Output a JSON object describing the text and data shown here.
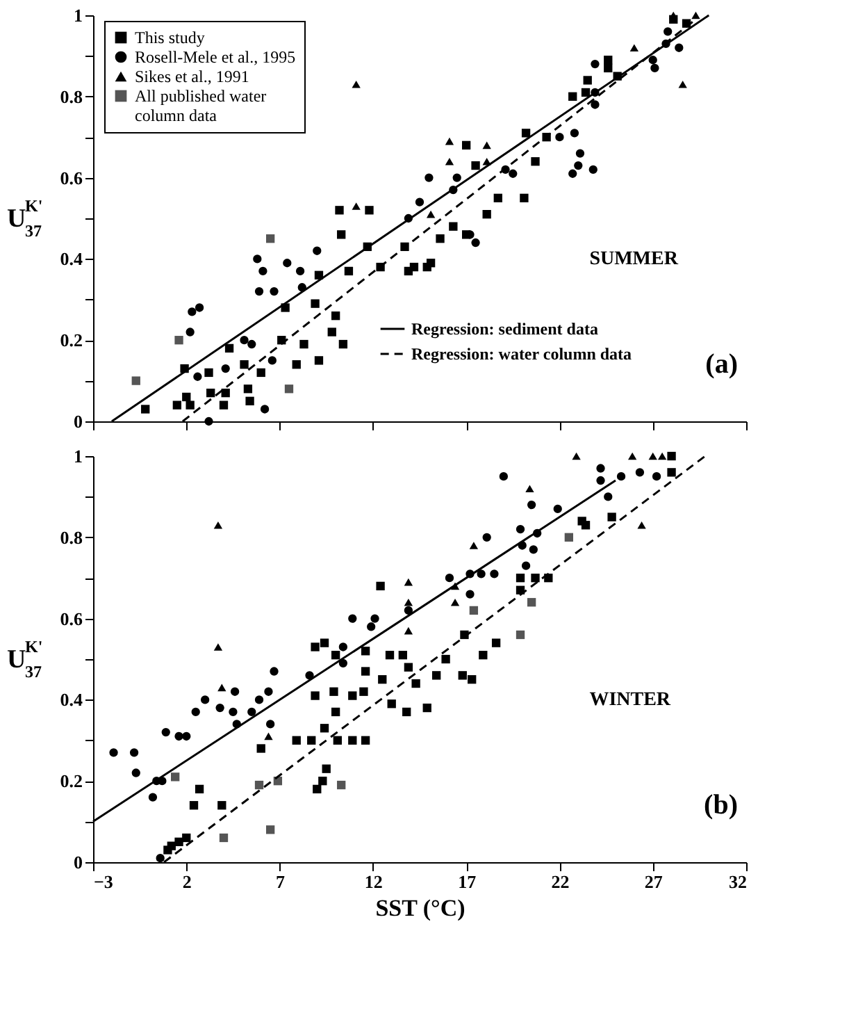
{
  "chart_data": [
    {
      "type": "scatter",
      "ylabel": "U$^{K'}$$_{37}$",
      "annotations": [
        "SUMMER",
        "(a)"
      ],
      "xlim": [
        -3,
        32
      ],
      "xticks": [
        -3,
        2,
        7,
        12,
        17,
        22,
        27,
        32
      ],
      "ylim": [
        0,
        1
      ],
      "yticks": [
        0,
        {
          "value": 0.1,
          "label": null
        },
        0.2,
        {
          "value": 0.3,
          "label": null
        },
        0.4,
        {
          "value": 0.5,
          "label": null
        },
        0.6,
        {
          "value": 0.7,
          "label": null
        },
        0.8,
        {
          "value": 0.9,
          "label": null
        },
        1
      ],
      "tick_labels": "y",
      "legend": "top left",
      "grid": false,
      "series": [
        {
          "name": "This study",
          "marker": "square",
          "color": "#000000",
          "x": [
            10.2,
            11.8,
            10.3,
            9.1,
            11.7,
            12.4,
            10.7,
            7.3,
            8.9,
            10.0,
            9.8,
            10.4,
            8.3,
            7.1,
            4.3,
            5.1,
            6.0,
            7.9,
            9.1,
            3.2,
            1.9,
            5.3,
            4.1,
            2.0,
            3.3,
            14.2,
            13.7,
            17.0,
            17.5,
            18.7,
            18.1,
            20.1,
            20.7,
            20.2,
            21.3,
            22.7,
            23.5,
            23.4,
            24.6,
            24.6,
            25.1,
            15.6,
            16.3,
            17.0,
            15.1,
            13.9,
            14.9,
            28.1,
            28.8,
            -0.2,
            1.5,
            2.2,
            4.0,
            5.4
          ],
          "values": [
            0.52,
            0.52,
            0.46,
            0.36,
            0.43,
            0.38,
            0.37,
            0.28,
            0.29,
            0.26,
            0.22,
            0.19,
            0.19,
            0.2,
            0.18,
            0.14,
            0.12,
            0.14,
            0.15,
            0.12,
            0.13,
            0.08,
            0.07,
            0.06,
            0.07,
            0.38,
            0.43,
            0.68,
            0.63,
            0.55,
            0.51,
            0.55,
            0.64,
            0.71,
            0.7,
            0.8,
            0.84,
            0.81,
            0.89,
            0.87,
            0.85,
            0.45,
            0.48,
            0.46,
            0.39,
            0.37,
            0.38,
            0.99,
            0.98,
            0.03,
            0.04,
            0.04,
            0.04,
            0.05
          ]
        },
        {
          "name": "Rosell-Mele et al., 1995",
          "marker": "circle",
          "color": "#000000",
          "x": [
            5.8,
            6.1,
            7.4,
            8.1,
            5.9,
            6.7,
            8.2,
            9.0,
            2.3,
            2.7,
            2.2,
            5.1,
            5.5,
            6.6,
            4.1,
            2.6,
            3.2,
            6.2,
            15.0,
            16.5,
            16.3,
            19.1,
            19.5,
            22.0,
            22.8,
            23.9,
            23.9,
            23.9,
            23.8,
            22.7,
            23.1,
            23.0,
            27.1,
            27.0,
            27.7,
            28.4,
            27.8,
            17.2,
            17.5,
            13.9,
            14.5
          ],
          "values": [
            0.4,
            0.37,
            0.39,
            0.37,
            0.32,
            0.32,
            0.33,
            0.42,
            0.27,
            0.28,
            0.22,
            0.2,
            0.19,
            0.15,
            0.13,
            0.11,
            0.0,
            0.03,
            0.6,
            0.6,
            0.57,
            0.62,
            0.61,
            0.7,
            0.71,
            0.78,
            0.88,
            0.81,
            0.62,
            0.61,
            0.66,
            0.63,
            0.87,
            0.89,
            0.93,
            0.92,
            0.96,
            0.46,
            0.44,
            0.5,
            0.54
          ]
        },
        {
          "name": "Sikes et al., 1991",
          "marker": "triangle",
          "color": "#000000",
          "x": [
            11.1,
            11.1,
            26.0,
            28.6,
            16.1,
            16.1,
            18.1,
            18.1,
            15.1,
            29.3,
            28.1
          ],
          "values": [
            0.83,
            0.53,
            0.92,
            0.83,
            0.69,
            0.64,
            0.68,
            0.64,
            0.51,
            1.0,
            1.0
          ]
        },
        {
          "name": "All published water column data",
          "marker": "square",
          "color": "#555555",
          "x": [
            6.5,
            1.6,
            -0.7,
            7.5
          ],
          "values": [
            0.45,
            0.2,
            0.1,
            0.08
          ]
        },
        {
          "name": "Regression: sediment data",
          "type": "line",
          "color": "#000000",
          "line_style": "solid",
          "x": [
            -2.0,
            30.0
          ],
          "values": [
            0,
            1.0
          ]
        },
        {
          "name": "Regression: water column data",
          "type": "line",
          "color": "#000000",
          "line_style": "dashed",
          "x": [
            1.8,
            29.3
          ],
          "values": [
            0,
            0.99
          ]
        }
      ]
    },
    {
      "type": "scatter",
      "xlabel": "SST (°C)",
      "ylabel": "U$^{K'}$$_{37}$",
      "annotations": [
        "WINTER",
        "(b)"
      ],
      "xlim": [
        -3,
        32
      ],
      "xticks": [
        -3,
        2,
        7,
        12,
        17,
        22,
        27,
        32
      ],
      "ylim": [
        0,
        1
      ],
      "yticks": [
        0,
        {
          "value": 0.1,
          "label": null
        },
        0.2,
        {
          "value": 0.3,
          "label": null
        },
        0.4,
        {
          "value": 0.5,
          "label": null
        },
        0.6,
        {
          "value": 0.7,
          "label": null
        },
        0.8,
        {
          "value": 0.9,
          "label": null
        },
        1
      ],
      "grid": false,
      "series": [
        {
          "marker": "square",
          "color": "#000000",
          "x": [
            12.4,
            8.9,
            9.4,
            10.0,
            11.6,
            12.9,
            8.9,
            9.9,
            10.0,
            10.9,
            11.5,
            11.6,
            12.5,
            13.0,
            9.4,
            10.1,
            10.9,
            11.6,
            6.0,
            7.9,
            8.7,
            9.5,
            9.3,
            9.0,
            2.7,
            3.9,
            2.4,
            13.8,
            1.2,
            1.6,
            2.0,
            1.0,
            23.2,
            23.4,
            24.8,
            28.0,
            28.0,
            19.9,
            20.7,
            21.4,
            19.9,
            16.9,
            18.6,
            17.9,
            15.9,
            15.4,
            16.8,
            17.3,
            14.3,
            14.9,
            13.6,
            13.9
          ],
          "values": [
            0.68,
            0.53,
            0.54,
            0.51,
            0.52,
            0.51,
            0.41,
            0.42,
            0.37,
            0.41,
            0.42,
            0.47,
            0.45,
            0.39,
            0.33,
            0.3,
            0.3,
            0.3,
            0.28,
            0.3,
            0.3,
            0.23,
            0.2,
            0.18,
            0.18,
            0.14,
            0.14,
            0.37,
            0.04,
            0.05,
            0.06,
            0.03,
            0.84,
            0.83,
            0.85,
            1.0,
            0.96,
            0.7,
            0.7,
            0.7,
            0.67,
            0.56,
            0.54,
            0.51,
            0.5,
            0.46,
            0.46,
            0.45,
            0.44,
            0.38,
            0.51,
            0.48
          ]
        },
        {
          "marker": "circle",
          "color": "#000000",
          "x": [
            -1.9,
            -0.8,
            -0.7,
            0.9,
            1.6,
            2.0,
            2.5,
            3.0,
            3.8,
            4.6,
            4.5,
            4.7,
            5.5,
            5.9,
            6.4,
            6.7,
            6.5,
            8.6,
            10.4,
            10.4,
            10.9,
            11.9,
            12.1,
            0.4,
            0.7,
            0.2,
            0.6,
            19.0,
            20.5,
            21.9,
            18.1,
            19.9,
            20.0,
            20.6,
            20.8,
            16.1,
            17.2,
            17.8,
            18.5,
            17.2,
            20.2,
            24.2,
            24.2,
            24.6,
            25.3,
            26.3,
            27.2,
            13.9
          ],
          "values": [
            0.27,
            0.27,
            0.22,
            0.32,
            0.31,
            0.31,
            0.37,
            0.4,
            0.38,
            0.42,
            0.37,
            0.34,
            0.37,
            0.4,
            0.42,
            0.47,
            0.34,
            0.46,
            0.49,
            0.53,
            0.6,
            0.58,
            0.6,
            0.2,
            0.2,
            0.16,
            0.01,
            0.95,
            0.88,
            0.87,
            0.8,
            0.82,
            0.78,
            0.77,
            0.81,
            0.7,
            0.71,
            0.71,
            0.71,
            0.66,
            0.73,
            0.97,
            0.94,
            0.9,
            0.95,
            0.96,
            0.95,
            0.62
          ]
        },
        {
          "marker": "triangle",
          "color": "#000000",
          "x": [
            3.7,
            3.7,
            3.9,
            6.4,
            13.9,
            13.9,
            13.9,
            22.9,
            20.4,
            17.4,
            16.4,
            16.4,
            26.4,
            25.9,
            27.0,
            27.5
          ],
          "values": [
            0.83,
            0.53,
            0.43,
            0.31,
            0.69,
            0.64,
            0.57,
            1.0,
            0.92,
            0.78,
            0.68,
            0.64,
            0.83,
            1.0,
            1.0,
            1.0
          ]
        },
        {
          "marker": "square",
          "color": "#555555",
          "x": [
            1.4,
            5.9,
            6.9,
            10.3,
            22.5,
            17.4,
            20.5,
            19.9,
            4.0,
            6.5
          ],
          "values": [
            0.21,
            0.19,
            0.2,
            0.19,
            0.8,
            0.62,
            0.64,
            0.56,
            0.06,
            0.08
          ]
        },
        {
          "type": "line",
          "color": "#000000",
          "line_style": "solid",
          "x": [
            -3,
            25
          ],
          "values": [
            0.1,
            0.94
          ]
        },
        {
          "type": "line",
          "color": "#000000",
          "line_style": "dashed",
          "x": [
            0.8,
            29.8
          ],
          "values": [
            0,
            1.0
          ]
        }
      ]
    }
  ]
}
